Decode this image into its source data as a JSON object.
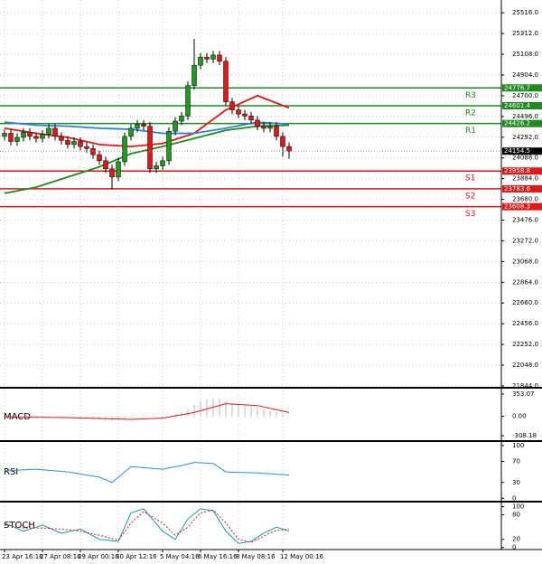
{
  "chart_data": [
    {
      "type": "candlestick",
      "categories": [
        "23 Apr 16:16",
        null,
        null,
        null,
        null,
        null,
        "27 Apr 08:16",
        null,
        null,
        null,
        null,
        null,
        "29 Apr 00:16",
        null,
        null,
        null,
        null,
        null,
        "30 Apr 12:16",
        null,
        null,
        null,
        null,
        null,
        null,
        "5 May 04:16",
        null,
        null,
        null,
        null,
        null,
        "6 May 16:16",
        null,
        null,
        null,
        null,
        null,
        "8 May 08:16",
        null,
        null,
        null,
        null,
        null,
        null,
        "12 May 00:16",
        null
      ],
      "open": [
        24300,
        24330,
        24250,
        24290,
        24340,
        24300,
        24280,
        24320,
        24380,
        24300,
        24260,
        24220,
        24250,
        24200,
        24180,
        24120,
        24060,
        23980,
        23900,
        24050,
        24300,
        24380,
        24420,
        24400,
        23980,
        24010,
        24060,
        24350,
        24450,
        24500,
        24800,
        25000,
        25080,
        25060,
        25100,
        25040,
        24640,
        24560,
        24520,
        24500,
        24460,
        24400,
        24380,
        24400,
        24300,
        24200
      ],
      "high": [
        24370,
        24370,
        24330,
        24380,
        24380,
        24340,
        24360,
        24420,
        24420,
        24340,
        24300,
        24290,
        24290,
        24240,
        24220,
        24160,
        24100,
        24020,
        24090,
        24340,
        24420,
        24460,
        24460,
        24440,
        24050,
        24100,
        24390,
        24490,
        24540,
        24840,
        25260,
        25120,
        25120,
        25140,
        25140,
        25080,
        24680,
        24600,
        24560,
        24540,
        24500,
        24440,
        24440,
        24440,
        24340,
        24240
      ],
      "low": [
        24260,
        24210,
        24210,
        24250,
        24260,
        24240,
        24240,
        24280,
        24260,
        24220,
        24180,
        24180,
        24160,
        24140,
        24080,
        24020,
        23940,
        23780,
        23860,
        24010,
        24260,
        24340,
        24360,
        23940,
        23940,
        23970,
        24020,
        24310,
        24410,
        24460,
        24760,
        24960,
        25020,
        25020,
        25000,
        24600,
        24520,
        24480,
        24460,
        24420,
        24360,
        24340,
        24340,
        24260,
        24100,
        24080
      ],
      "close": [
        24330,
        24250,
        24290,
        24340,
        24300,
        24280,
        24320,
        24380,
        24300,
        24260,
        24220,
        24250,
        24200,
        24180,
        24120,
        24060,
        23980,
        23900,
        24050,
        24300,
        24380,
        24420,
        24400,
        23980,
        24010,
        24060,
        24350,
        24450,
        24500,
        24800,
        25000,
        25080,
        25060,
        25100,
        25040,
        24640,
        24560,
        24520,
        24500,
        24460,
        24400,
        24380,
        24400,
        24300,
        24200,
        24154.5
      ],
      "up_color": "#1f9a1f",
      "down_color": "#e01818",
      "series": [
        {
          "color": "#e01818",
          "x": [
            0,
            5,
            10,
            15,
            20,
            25,
            30,
            35,
            40,
            45
          ],
          "values": [
            24380,
            24330,
            24290,
            24220,
            24200,
            24230,
            24330,
            24560,
            24700,
            24580
          ]
        },
        {
          "color": "#2f7fe0",
          "x": [
            0,
            5,
            10,
            15,
            20,
            25,
            30,
            35,
            40,
            45
          ],
          "values": [
            24440,
            24410,
            24400,
            24380,
            24370,
            24330,
            24330,
            24380,
            24440,
            24420
          ]
        },
        {
          "color": "#1f8a1f",
          "x": [
            0,
            5,
            10,
            15,
            20,
            25,
            30,
            35,
            40,
            45
          ],
          "values": [
            23740,
            23800,
            23900,
            24000,
            24130,
            24200,
            24280,
            24360,
            24400,
            24410
          ]
        }
      ],
      "levels": [
        {
          "name": "R3",
          "value": 24776.7,
          "color": "#1f8a1f"
        },
        {
          "name": "R2",
          "value": 24601.4,
          "color": "#1f8a1f"
        },
        {
          "name": "R1",
          "value": 24426.2,
          "color": "#1f8a1f"
        },
        {
          "name": "S1",
          "value": 23958.8,
          "color": "#e01818"
        },
        {
          "name": "S2",
          "value": 23783.6,
          "color": "#e01818"
        },
        {
          "name": "S3",
          "value": 23608.3,
          "color": "#e01818"
        }
      ],
      "last": 24154.5,
      "ylim": [
        21835,
        25642
      ],
      "yticks": [
        {
          "value": 25516,
          "label": "25516.0"
        },
        {
          "value": 25312,
          "label": "25312.0"
        },
        {
          "value": 25108,
          "label": "25108.0"
        },
        {
          "value": 24904,
          "label": "24904.0"
        },
        {
          "value": 24700,
          "label": "24700.0"
        },
        {
          "value": 24496,
          "label": "24496.0"
        },
        {
          "value": 24292,
          "label": "24292.0"
        },
        {
          "value": 24088,
          "label": "24088.0"
        },
        {
          "value": 23884,
          "label": "23884.0"
        },
        {
          "value": 23680,
          "label": "23680.0"
        },
        {
          "value": 23476,
          "label": "23476.0"
        },
        {
          "value": 23272,
          "label": "23272.0"
        },
        {
          "value": 23068,
          "label": "23068.0"
        },
        {
          "value": 22864,
          "label": "22864.0"
        },
        {
          "value": 22660,
          "label": "22660.0"
        },
        {
          "value": 22456,
          "label": "22456.0"
        },
        {
          "value": 22252,
          "label": "22252.0"
        },
        {
          "value": 22048,
          "label": "22048.0"
        },
        {
          "value": 21844,
          "label": "21844.0"
        }
      ],
      "grid": true
    },
    {
      "type": "macd",
      "title": "MACD",
      "histogram": [
        -20,
        -25,
        -20,
        -15,
        -10,
        -10,
        -5,
        0,
        -5,
        -10,
        -15,
        -20,
        -25,
        -30,
        -40,
        -50,
        -60,
        -70,
        -60,
        -40,
        -20,
        0,
        10,
        -10,
        -20,
        -20,
        0,
        30,
        60,
        120,
        180,
        230,
        260,
        280,
        280,
        240,
        210,
        190,
        170,
        150,
        130,
        110,
        90,
        70,
        40,
        10
      ],
      "histogram_color": "#b8b8b8",
      "series": [
        {
          "color": "#e01818",
          "x": [
            0,
            10,
            20,
            25,
            30,
            35,
            40,
            45
          ],
          "values": [
            -10,
            -20,
            -50,
            -30,
            60,
            200,
            170,
            60
          ]
        }
      ],
      "ylim": [
        -378.5,
        423.4
      ],
      "yticks": [
        353.07,
        {
          "value": 0,
          "label": "0.00"
        },
        -308.18
      ]
    },
    {
      "type": "line",
      "title": "RSI",
      "series": [
        {
          "color": "#2f8fe0",
          "x": [
            0,
            5,
            10,
            15,
            17,
            20,
            25,
            28,
            30,
            33,
            35,
            40,
            45
          ],
          "values": [
            52,
            55,
            50,
            40,
            30,
            60,
            55,
            62,
            68,
            66,
            50,
            48,
            44
          ]
        }
      ],
      "ylim": [
        -3,
        105
      ],
      "yticks": [
        100,
        70,
        30,
        0
      ]
    },
    {
      "type": "line",
      "title": "STOCH",
      "series": [
        {
          "color": "#1aa0a0",
          "x": [
            0,
            3,
            6,
            9,
            12,
            15,
            18,
            20,
            22,
            25,
            27,
            29,
            31,
            33,
            35,
            37,
            39,
            41,
            43,
            45
          ],
          "values": [
            60,
            40,
            55,
            35,
            45,
            20,
            15,
            85,
            95,
            40,
            20,
            70,
            95,
            90,
            40,
            10,
            15,
            35,
            50,
            40
          ]
        },
        {
          "color": "#e01818",
          "dashed": true,
          "x": [
            0,
            3,
            6,
            9,
            12,
            15,
            18,
            20,
            22,
            25,
            27,
            29,
            31,
            33,
            35,
            37,
            39,
            41,
            43,
            45
          ],
          "values": [
            55,
            48,
            48,
            45,
            40,
            30,
            18,
            60,
            88,
            60,
            30,
            50,
            85,
            92,
            60,
            20,
            12,
            28,
            42,
            45
          ]
        }
      ],
      "ylim": [
        -5,
        108
      ],
      "yticks": [
        100,
        80,
        20,
        0
      ]
    }
  ]
}
